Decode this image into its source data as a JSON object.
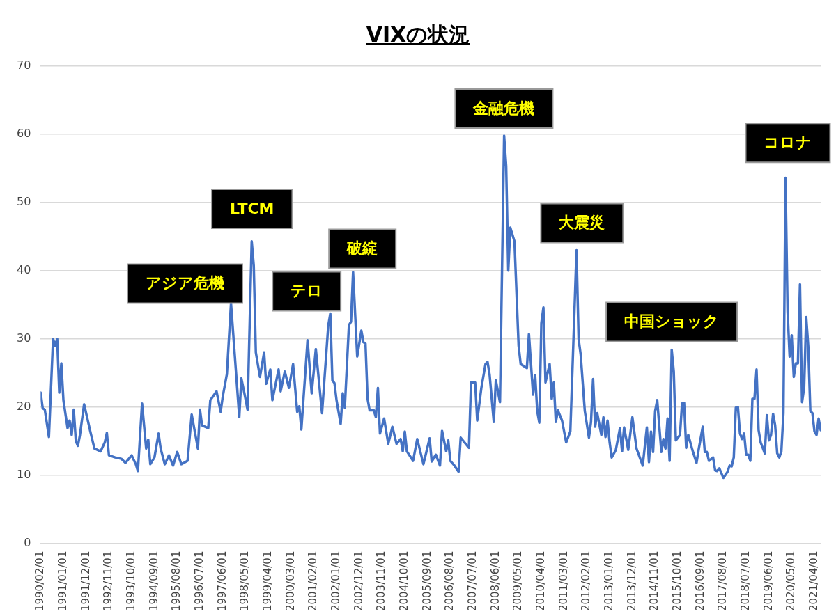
{
  "chart_data": {
    "type": "line",
    "title": "VIXの状況",
    "x": [
      "1990-02",
      "1990-03",
      "1990-04",
      "1990-06",
      "1990-08",
      "1990-09",
      "1990-10",
      "1990-11",
      "1990-12",
      "1991-01",
      "1991-03",
      "1991-04",
      "1991-05",
      "1991-06",
      "1991-07",
      "1991-08",
      "1991-09",
      "1991-11",
      "1992-02",
      "1992-04",
      "1992-07",
      "1992-09",
      "1992-10",
      "1992-11",
      "1993-02",
      "1993-05",
      "1993-07",
      "1993-10",
      "1993-12",
      "1994-01",
      "1994-03",
      "1994-05",
      "1994-06",
      "1994-07",
      "1994-09",
      "1994-11",
      "1994-12",
      "1995-02",
      "1995-04",
      "1995-06",
      "1995-08",
      "1995-10",
      "1996-01",
      "1996-03",
      "1996-06",
      "1996-07",
      "1996-08",
      "1996-11",
      "1996-12",
      "1997-03",
      "1997-05",
      "1997-06",
      "1997-08",
      "1997-10",
      "1998-02",
      "1998-03",
      "1998-05",
      "1998-06",
      "1998-08",
      "1998-09",
      "1998-10",
      "1998-12",
      "1999-02",
      "1999-03",
      "1999-05",
      "1999-06",
      "1999-09",
      "1999-10",
      "1999-12",
      "2000-02",
      "2000-04",
      "2000-06",
      "2000-07",
      "2000-08",
      "2000-11",
      "2001-01",
      "2001-03",
      "2001-06",
      "2001-09",
      "2001-10",
      "2001-11",
      "2001-12",
      "2002-01",
      "2002-03",
      "2002-04",
      "2002-05",
      "2002-07",
      "2002-08",
      "2002-09",
      "2002-11",
      "2003-01",
      "2003-02",
      "2003-03",
      "2003-04",
      "2003-05",
      "2003-07",
      "2003-08",
      "2003-09",
      "2003-10",
      "2003-12",
      "2004-02",
      "2004-04",
      "2004-06",
      "2004-08",
      "2004-09",
      "2004-10",
      "2004-11",
      "2005-02",
      "2005-04",
      "2005-07",
      "2005-10",
      "2005-11",
      "2006-01",
      "2006-03",
      "2006-04",
      "2006-06",
      "2006-07",
      "2006-08",
      "2006-10",
      "2006-12",
      "2007-01",
      "2007-05",
      "2007-06",
      "2007-08",
      "2007-09",
      "2007-11",
      "2008-01",
      "2008-02",
      "2008-03",
      "2008-05",
      "2008-06",
      "2008-08",
      "2008-10",
      "2008-11",
      "2008-12",
      "2009-01",
      "2009-03",
      "2009-05",
      "2009-06",
      "2009-09",
      "2009-10",
      "2009-12",
      "2010-01",
      "2010-02",
      "2010-03",
      "2010-04",
      "2010-05",
      "2010-06",
      "2010-08",
      "2010-09",
      "2010-10",
      "2010-11",
      "2010-12",
      "2011-02",
      "2011-04",
      "2011-06",
      "2011-09",
      "2011-10",
      "2011-11",
      "2012-01",
      "2012-03",
      "2012-04",
      "2012-05",
      "2012-06",
      "2012-07",
      "2012-09",
      "2012-10",
      "2012-11",
      "2012-12",
      "2013-01",
      "2013-02",
      "2013-04",
      "2013-06",
      "2013-07",
      "2013-08",
      "2013-10",
      "2013-12",
      "2014-02",
      "2014-05",
      "2014-07",
      "2014-08",
      "2014-09",
      "2014-10",
      "2014-11",
      "2014-12",
      "2015-02",
      "2015-03",
      "2015-04",
      "2015-05",
      "2015-06",
      "2015-07",
      "2015-08",
      "2015-09",
      "2015-11",
      "2015-12",
      "2016-01",
      "2016-02",
      "2016-03",
      "2016-05",
      "2016-07",
      "2016-08",
      "2016-10",
      "2016-11",
      "2016-12",
      "2017-01",
      "2017-03",
      "2017-04",
      "2017-05",
      "2017-06",
      "2017-07",
      "2017-08",
      "2017-10",
      "2017-11",
      "2017-12",
      "2018-01",
      "2018-02",
      "2018-03",
      "2018-04",
      "2018-05",
      "2018-06",
      "2018-07",
      "2018-08",
      "2018-09",
      "2018-10",
      "2018-11",
      "2018-12",
      "2019-01",
      "2019-02",
      "2019-03",
      "2019-04",
      "2019-05",
      "2019-06",
      "2019-07",
      "2019-08",
      "2019-09",
      "2019-10",
      "2019-11",
      "2019-12",
      "2020-01",
      "2020-02",
      "2020-03",
      "2020-04",
      "2020-05",
      "2020-06",
      "2020-07",
      "2020-08",
      "2020-09",
      "2020-10",
      "2020-11",
      "2020-12",
      "2021-01",
      "2021-02",
      "2021-03",
      "2021-04",
      "2021-05",
      "2021-06",
      "2021-07"
    ],
    "series": [
      {
        "color": "#4472c4",
        "values": [
          22.1,
          19.8,
          19.6,
          15.6,
          30.0,
          29.0,
          30.0,
          22.1,
          26.4,
          21.0,
          16.9,
          18.0,
          15.9,
          19.6,
          15.0,
          14.3,
          15.9,
          20.4,
          16.4,
          13.9,
          13.5,
          14.8,
          16.2,
          12.9,
          12.6,
          12.4,
          11.8,
          12.9,
          11.6,
          10.6,
          20.5,
          13.9,
          15.2,
          11.6,
          12.6,
          16.1,
          13.9,
          11.6,
          12.9,
          11.4,
          13.4,
          11.6,
          12.1,
          18.9,
          13.9,
          19.6,
          17.3,
          16.9,
          21.0,
          22.3,
          19.3,
          21.5,
          24.8,
          35.2,
          18.5,
          24.2,
          21.2,
          19.6,
          44.3,
          40.7,
          28.0,
          24.4,
          28.0,
          23.4,
          25.5,
          21.0,
          25.5,
          22.3,
          25.2,
          22.8,
          26.3,
          19.3,
          20.1,
          16.7,
          29.8,
          22.0,
          28.5,
          19.1,
          31.9,
          33.7,
          23.9,
          23.5,
          21.0,
          17.5,
          22.0,
          19.9,
          32.0,
          32.5,
          39.8,
          27.4,
          31.2,
          29.5,
          29.3,
          21.2,
          19.5,
          19.5,
          18.5,
          22.8,
          16.1,
          18.3,
          14.6,
          17.1,
          14.6,
          15.3,
          13.5,
          16.4,
          13.5,
          12.1,
          15.3,
          11.6,
          15.4,
          12.0,
          13.0,
          11.4,
          16.5,
          13.5,
          15.1,
          12.1,
          11.4,
          10.5,
          15.5,
          14.0,
          23.6,
          23.6,
          18.0,
          22.8,
          26.3,
          26.6,
          24.7,
          17.8,
          23.9,
          20.7,
          59.8,
          55.3,
          40.0,
          46.3,
          44.3,
          29.0,
          26.3,
          25.7,
          30.7,
          21.8,
          24.7,
          19.4,
          17.7,
          32.3,
          34.6,
          23.6,
          26.3,
          21.2,
          23.6,
          17.8,
          19.5,
          18.0,
          14.8,
          16.4,
          43.0,
          30.0,
          27.7,
          19.4,
          15.5,
          17.8,
          24.1,
          17.1,
          19.1,
          15.9,
          18.5,
          15.6,
          18.0,
          14.8,
          12.6,
          13.7,
          16.9,
          13.5,
          17.0,
          13.7,
          18.5,
          13.9,
          11.4,
          17.0,
          11.9,
          16.4,
          13.4,
          19.4,
          21.0,
          13.4,
          15.3,
          13.9,
          18.3,
          12.1,
          28.4,
          25.2,
          15.1,
          15.9,
          20.5,
          20.6,
          14.0,
          15.9,
          13.7,
          11.8,
          13.7,
          17.1,
          13.4,
          13.4,
          12.1,
          12.6,
          10.7,
          10.6,
          11.0,
          10.3,
          9.6,
          10.5,
          11.4,
          11.3,
          12.6,
          19.9,
          20.0,
          16.1,
          15.3,
          16.1,
          13.0,
          13.0,
          12.1,
          21.2,
          21.2,
          25.5,
          16.6,
          14.8,
          14.0,
          13.2,
          18.8,
          15.1,
          15.9,
          19.0,
          17.3,
          13.2,
          12.6,
          13.5,
          19.1,
          53.6,
          34.1,
          27.4,
          30.5,
          24.4,
          26.4,
          26.4,
          38.0,
          20.7,
          22.8,
          33.2,
          28.9,
          19.4,
          19.1,
          16.4,
          15.9,
          18.3,
          16.6
        ]
      }
    ],
    "xlim": [
      "1990-02",
      "2021-07"
    ],
    "xticks": [
      {
        "value": "1990-02",
        "label": "1990/02/01"
      },
      {
        "value": "1991-01",
        "label": "1991/01/01"
      },
      {
        "value": "1991-12",
        "label": "1991/12/01"
      },
      {
        "value": "1992-11",
        "label": "1992/11/01"
      },
      {
        "value": "1993-10",
        "label": "1993/10/01"
      },
      {
        "value": "1994-09",
        "label": "1994/09/01"
      },
      {
        "value": "1995-08",
        "label": "1995/08/01"
      },
      {
        "value": "1996-07",
        "label": "1996/07/01"
      },
      {
        "value": "1997-06",
        "label": "1997/06/01"
      },
      {
        "value": "1998-05",
        "label": "1998/05/01"
      },
      {
        "value": "1999-04",
        "label": "1999/04/01"
      },
      {
        "value": "2000-03",
        "label": "2000/03/01"
      },
      {
        "value": "2001-02",
        "label": "2001/02/01"
      },
      {
        "value": "2002-01",
        "label": "2002/01/01"
      },
      {
        "value": "2002-12",
        "label": "2002/12/01"
      },
      {
        "value": "2003-11",
        "label": "2003/11/01"
      },
      {
        "value": "2004-10",
        "label": "2004/10/01"
      },
      {
        "value": "2005-09",
        "label": "2005/09/01"
      },
      {
        "value": "2006-08",
        "label": "2006/08/01"
      },
      {
        "value": "2007-07",
        "label": "2007/07/01"
      },
      {
        "value": "2008-06",
        "label": "2008/06/01"
      },
      {
        "value": "2009-05",
        "label": "2009/05/01"
      },
      {
        "value": "2010-04",
        "label": "2010/04/01"
      },
      {
        "value": "2011-03",
        "label": "2011/03/01"
      },
      {
        "value": "2012-02",
        "label": "2012/02/01"
      },
      {
        "value": "2013-01",
        "label": "2013/01/01"
      },
      {
        "value": "2013-12",
        "label": "2013/12/01"
      },
      {
        "value": "2014-11",
        "label": "2014/11/01"
      },
      {
        "value": "2015-10",
        "label": "2015/10/01"
      },
      {
        "value": "2016-09",
        "label": "2016/09/01"
      },
      {
        "value": "2017-08",
        "label": "2017/08/01"
      },
      {
        "value": "2018-07",
        "label": "2018/07/01"
      },
      {
        "value": "2019-06",
        "label": "2019/06/01"
      },
      {
        "value": "2020-05",
        "label": "2020/05/01"
      },
      {
        "value": "2021-04",
        "label": "2021/04/01"
      }
    ],
    "ylim": [
      0,
      70
    ],
    "yticks": [
      0,
      10,
      20,
      30,
      40,
      50,
      60,
      70
    ],
    "grid": "y",
    "marker": "none",
    "line_style": "solid",
    "legend": false,
    "annotations": [
      "アジア危機",
      "LTCM",
      "テロ",
      "破綻",
      "金融危機",
      "大震災",
      "中国ショック",
      "コロナ"
    ]
  }
}
